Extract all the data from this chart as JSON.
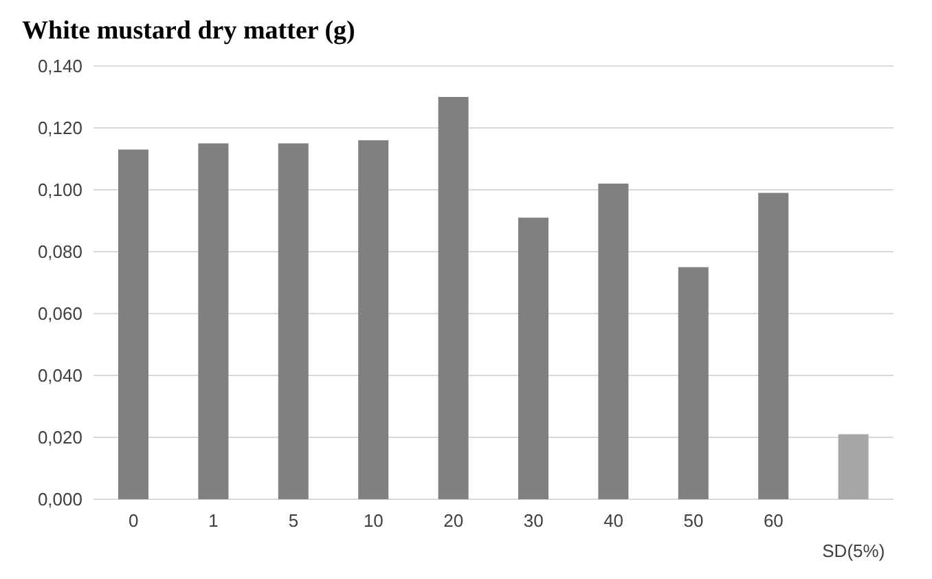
{
  "chart_data": {
    "type": "bar",
    "title": "White mustard dry matter (g)",
    "categories": [
      "0",
      "1",
      "5",
      "10",
      "20",
      "30",
      "40",
      "50",
      "60",
      "SD(5%)"
    ],
    "values": [
      0.113,
      0.115,
      0.115,
      0.116,
      0.13,
      0.091,
      0.102,
      0.075,
      0.099,
      0.021
    ],
    "colors": [
      "#808080",
      "#808080",
      "#808080",
      "#808080",
      "#808080",
      "#808080",
      "#808080",
      "#808080",
      "#808080",
      "#a6a6a6"
    ],
    "ylim": [
      0,
      0.14
    ],
    "yticks": [
      {
        "value": 0,
        "label": "0,000"
      },
      {
        "value": 0.02,
        "label": "0,020"
      },
      {
        "value": 0.04,
        "label": "0,040"
      },
      {
        "value": 0.06,
        "label": "0,060"
      },
      {
        "value": 0.08,
        "label": "0,080"
      },
      {
        "value": 0.1,
        "label": "0,100"
      },
      {
        "value": 0.12,
        "label": "0,120"
      },
      {
        "value": 0.14,
        "label": "0,140"
      }
    ],
    "grid": "y",
    "legend": false
  }
}
